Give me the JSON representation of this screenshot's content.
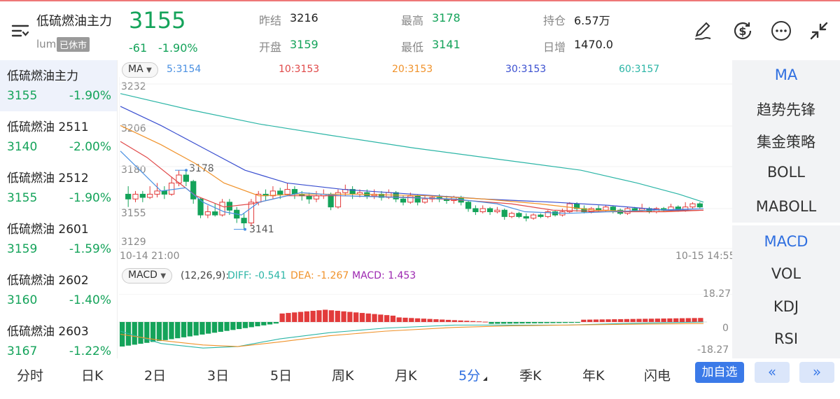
{
  "header": {
    "title": "低硫燃油主力",
    "exchange": "lum",
    "status_badge": "已休市",
    "price": "3155",
    "change": "-61",
    "change_pct": "-1.90%",
    "stats": [
      {
        "label": "昨结",
        "value": "3216"
      },
      {
        "label": "最高",
        "value": "3178"
      },
      {
        "label": "持仓",
        "value": "6.57万"
      },
      {
        "label": "开盘",
        "value": "3159"
      },
      {
        "label": "最低",
        "value": "3141"
      },
      {
        "label": "日增",
        "value": "1470.0"
      }
    ],
    "icons": [
      "pen-icon",
      "currency-icon",
      "more-icon",
      "collapse-icon"
    ]
  },
  "left_list": [
    {
      "name": "低硫燃油主力",
      "price": "3155",
      "pct": "-1.90%"
    },
    {
      "name": "低硫燃油 2511",
      "price": "3140",
      "pct": "-2.00%"
    },
    {
      "name": "低硫燃油 2512",
      "price": "3155",
      "pct": "-1.90%"
    },
    {
      "name": "低硫燃油 2601",
      "price": "3159",
      "pct": "-1.59%"
    },
    {
      "name": "低硫燃油 2602",
      "price": "3160",
      "pct": "-1.40%"
    },
    {
      "name": "低硫燃油 2603",
      "price": "3167",
      "pct": "-1.22%"
    }
  ],
  "main_chart": {
    "indicator": "MA",
    "ma_labels": [
      {
        "text": "5:3154",
        "color": "#4a90e2"
      },
      {
        "text": "10:3153",
        "color": "#e04848"
      },
      {
        "text": "20:3153",
        "color": "#f0922a"
      },
      {
        "text": "30:3153",
        "color": "#3a4fd0"
      },
      {
        "text": "60:3157",
        "color": "#2bb5a6"
      }
    ],
    "y_ticks": [
      "3232",
      "3206",
      "3180",
      "3155",
      "3129"
    ],
    "start_time": "10-14 21:00",
    "end_time": "10-15 14:55",
    "high_marker": "3178",
    "low_marker": "3141"
  },
  "macd": {
    "indicator": "MACD",
    "params": "(12,26,9):",
    "diff": "DIFF: -0.541",
    "dea": "DEA: -1.267",
    "macd": "MACD: 1.453",
    "y_top": "18.27",
    "y_mid": "0",
    "y_bot": "-18.27"
  },
  "right_menu": {
    "group1": [
      "MA",
      "趋势先锋",
      "集金策略",
      "BOLL",
      "MABOLL"
    ],
    "group2": [
      "MACD",
      "VOL",
      "KDJ",
      "RSI"
    ]
  },
  "tabs": [
    "分时",
    "日K",
    "2日",
    "3日",
    "5日",
    "周K",
    "月K",
    "5分",
    "季K",
    "年K",
    "闪电"
  ],
  "selected_tab": "5分",
  "add_button": "加自选",
  "prev_button": "«",
  "next_button": "»",
  "colors": {
    "up": "#e23b3b",
    "down": "#14a35a",
    "accent": "#2f6fe0"
  }
}
